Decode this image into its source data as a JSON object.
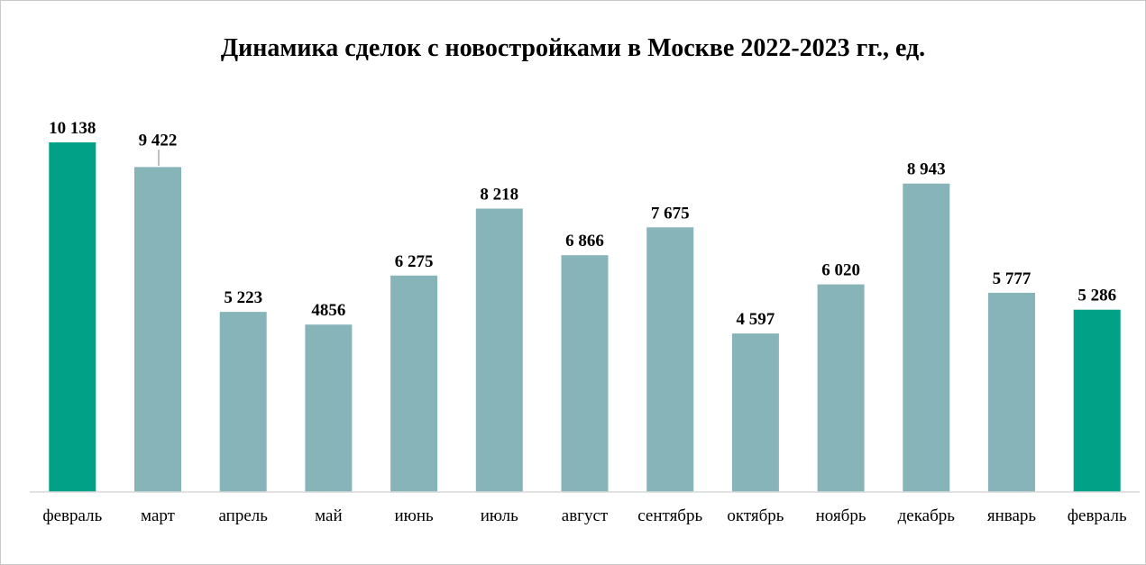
{
  "chart_data": {
    "type": "bar",
    "title": "Динамика сделок с новостройками в Москве 2022-2023 гг., ед.",
    "xlabel": "",
    "ylabel": "",
    "ylim": [
      0,
      10138
    ],
    "grid": false,
    "legend": "none",
    "categories": [
      "февраль",
      "март",
      "апрель",
      "май",
      "июнь",
      "июль",
      "август",
      "сентябрь",
      "октябрь",
      "ноябрь",
      "декабрь",
      "январь",
      "февраль"
    ],
    "values": [
      10138,
      9422,
      5223,
      4856,
      6275,
      8218,
      6866,
      7675,
      4597,
      6020,
      8943,
      5777,
      5286
    ],
    "data_labels": [
      "10 138",
      "9 422",
      "5 223",
      "4856",
      "6 275",
      "8 218",
      "6 866",
      "7 675",
      "4 597",
      "6 020",
      "8 943",
      "5 777",
      "5 286"
    ],
    "highlighted": [
      0,
      12
    ],
    "colors": {
      "bar": "#86b4b9",
      "highlight": "#00a186",
      "axis": "#d9d9d9",
      "leader": "#7f7f7f"
    }
  }
}
